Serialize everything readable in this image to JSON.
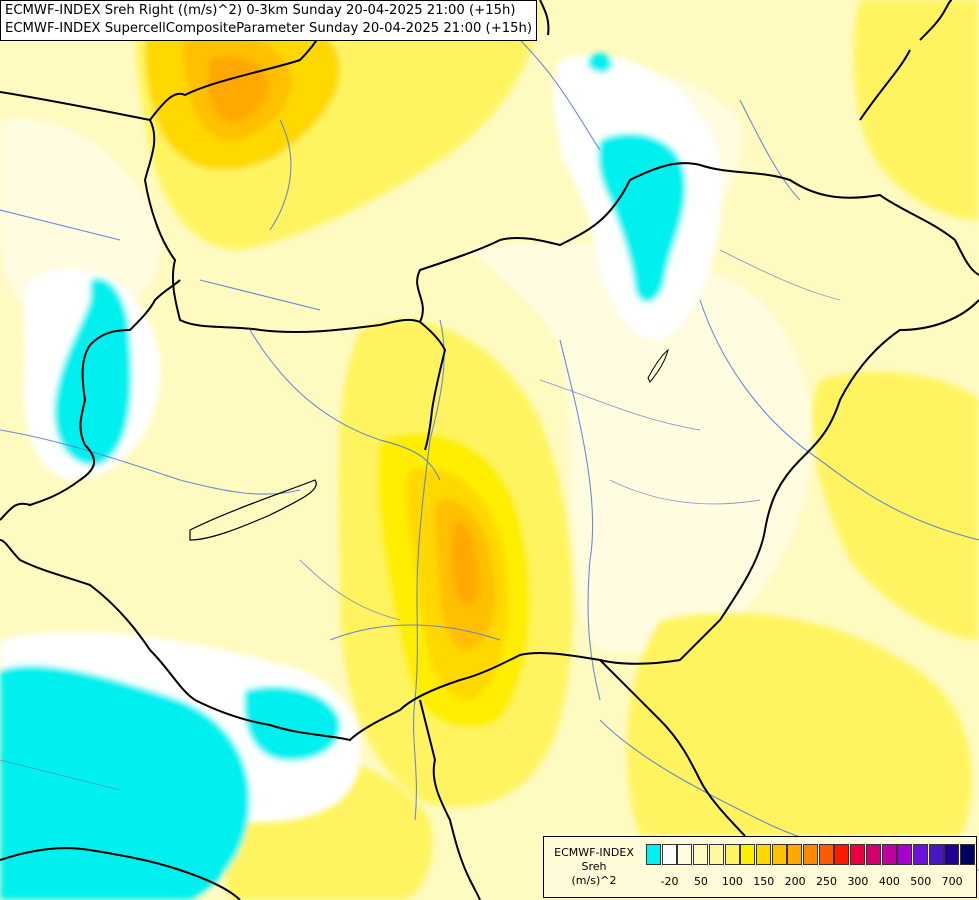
{
  "header": {
    "line1": "ECMWF-INDEX Sreh Right ((m/s)^2) 0-3km Sunday 20-04-2025 21:00 (+15h)",
    "line2": "ECMWF-INDEX SupercellCompositeParameter Sunday 20-04-2025 21:00 (+15h)"
  },
  "legend": {
    "title_line1": "ECMWF-INDEX",
    "title_line2": "Sreh",
    "title_line3": "(m/s)^2",
    "colors": [
      "#00f0f0",
      "#ffffff",
      "#fffce0",
      "#fffac0",
      "#fff8a0",
      "#fff460",
      "#ffee00",
      "#ffd800",
      "#ffc000",
      "#ffa800",
      "#ff8800",
      "#ff5a00",
      "#ff1800",
      "#e80040",
      "#d00070",
      "#c000a0",
      "#a800d0",
      "#7010e0",
      "#4818c0",
      "#200090",
      "#000060"
    ],
    "ticks": [
      "-20",
      "50",
      "100",
      "150",
      "200",
      "250",
      "300",
      "400",
      "500",
      "700"
    ]
  }
}
